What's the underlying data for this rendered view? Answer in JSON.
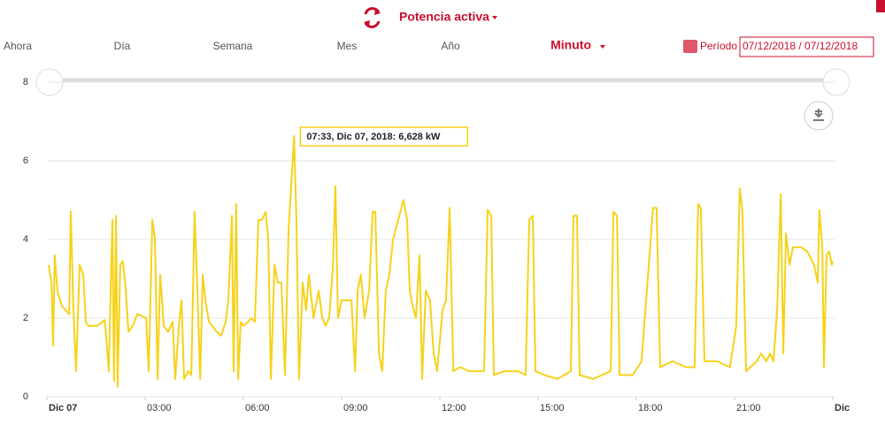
{
  "toolbar": {
    "title": "Potencia activa",
    "tabs": [
      "Ahora",
      "Día",
      "Semana",
      "Mes",
      "Año"
    ],
    "resolution": "Minuto",
    "period_label": "Período",
    "period_value": "07/12/2018 / 07/12/2018"
  },
  "chart_data": {
    "type": "line",
    "x": [
      0.05,
      0.14,
      0.19,
      0.24,
      0.32,
      0.46,
      0.68,
      0.73,
      0.81,
      0.89,
      1.0,
      1.11,
      1.19,
      1.27,
      1.54,
      1.76,
      1.81,
      1.89,
      2.0,
      2.05,
      2.11,
      2.16,
      2.24,
      2.32,
      2.41,
      2.49,
      2.62,
      2.76,
      3.03,
      3.11,
      3.22,
      3.3,
      3.38,
      3.46,
      3.57,
      3.7,
      3.84,
      3.92,
      4.03,
      4.11,
      4.19,
      4.32,
      4.41,
      4.51,
      4.59,
      4.68,
      4.76,
      4.84,
      4.95,
      5.05,
      5.19,
      5.32,
      5.46,
      5.54,
      5.65,
      5.7,
      5.78,
      5.84,
      5.92,
      6.0,
      6.14,
      6.24,
      6.35,
      6.46,
      6.57,
      6.68,
      6.76,
      6.84,
      6.95,
      7.05,
      7.16,
      7.27,
      7.38,
      7.55,
      7.62,
      7.7,
      7.81,
      7.92,
      8.0,
      8.14,
      8.3,
      8.41,
      8.51,
      8.62,
      8.73,
      8.81,
      8.89,
      9.0,
      9.16,
      9.3,
      9.41,
      9.49,
      9.59,
      9.7,
      9.84,
      9.95,
      10.03,
      10.14,
      10.24,
      10.35,
      10.46,
      10.57,
      10.73,
      10.89,
      11.0,
      11.08,
      11.16,
      11.27,
      11.38,
      11.46,
      11.57,
      11.7,
      11.81,
      11.92,
      12.08,
      12.19,
      12.3,
      12.41,
      12.62,
      12.89,
      13.16,
      13.35,
      13.46,
      13.57,
      13.65,
      13.97,
      14.38,
      14.62,
      14.73,
      14.84,
      14.92,
      15.19,
      15.59,
      16.0,
      16.08,
      16.19,
      16.27,
      16.68,
      17.22,
      17.3,
      17.41,
      17.49,
      17.89,
      18.16,
      18.51,
      18.62,
      18.73,
      19.11,
      19.51,
      19.78,
      19.89,
      19.97,
      20.08,
      20.46,
      20.86,
      21.05,
      21.16,
      21.24,
      21.35,
      21.68,
      21.81,
      21.97,
      22.08,
      22.19,
      22.3,
      22.41,
      22.49,
      22.57,
      22.68,
      22.78,
      23.03,
      23.22,
      23.43,
      23.54,
      23.59,
      23.68,
      23.73,
      23.81,
      23.89,
      23.97,
      24.0
    ],
    "series": [
      {
        "name": "Potencia activa",
        "color": "#f7d21a",
        "values": [
          3.35,
          2.9,
          1.3,
          3.6,
          2.7,
          2.3,
          2.1,
          4.7,
          2.2,
          0.65,
          3.35,
          3.1,
          1.9,
          1.8,
          1.8,
          1.95,
          1.55,
          0.65,
          4.5,
          0.4,
          4.6,
          0.25,
          3.35,
          3.45,
          2.7,
          1.65,
          1.8,
          2.1,
          2.0,
          0.65,
          4.5,
          4.0,
          0.45,
          3.1,
          1.8,
          1.65,
          1.9,
          0.45,
          1.8,
          2.45,
          0.45,
          0.65,
          0.55,
          4.7,
          2.9,
          0.45,
          3.1,
          2.45,
          1.9,
          1.8,
          1.65,
          1.55,
          1.9,
          2.45,
          4.6,
          0.65,
          4.9,
          0.45,
          1.9,
          1.8,
          1.9,
          2.0,
          1.9,
          4.5,
          4.5,
          4.7,
          4.0,
          0.45,
          3.35,
          2.9,
          2.9,
          0.55,
          4.25,
          6.628,
          4.5,
          0.45,
          2.9,
          2.2,
          3.1,
          2.0,
          2.7,
          2.0,
          1.8,
          2.0,
          3.25,
          5.35,
          2.0,
          2.45,
          2.45,
          2.45,
          0.65,
          2.7,
          3.1,
          2.0,
          2.7,
          4.7,
          4.7,
          1.1,
          0.65,
          2.7,
          3.1,
          4.0,
          4.5,
          5.0,
          4.5,
          2.7,
          2.35,
          2.0,
          3.6,
          0.45,
          2.7,
          2.45,
          1.1,
          0.65,
          2.2,
          2.45,
          4.8,
          0.65,
          0.75,
          0.65,
          0.65,
          0.65,
          4.75,
          4.6,
          0.55,
          0.65,
          0.65,
          0.55,
          4.5,
          4.6,
          0.65,
          0.55,
          0.45,
          0.65,
          4.6,
          4.6,
          0.55,
          0.45,
          0.65,
          4.7,
          4.6,
          0.55,
          0.55,
          0.9,
          4.8,
          4.8,
          0.75,
          0.9,
          0.75,
          0.75,
          4.9,
          4.8,
          0.9,
          0.9,
          0.75,
          1.8,
          5.3,
          4.7,
          0.65,
          0.9,
          1.1,
          0.9,
          1.1,
          0.9,
          2.2,
          5.15,
          1.1,
          4.15,
          3.35,
          3.8,
          3.8,
          3.7,
          3.35,
          2.9,
          4.75,
          3.8,
          0.75,
          3.6,
          3.7,
          3.35,
          3.45
        ]
      }
    ],
    "xlim": [
      0,
      24
    ],
    "xticks": [
      {
        "value": 0,
        "label": "Dic 07"
      },
      {
        "value": 3,
        "label": "03:00"
      },
      {
        "value": 6,
        "label": "06:00"
      },
      {
        "value": 9,
        "label": "09:00"
      },
      {
        "value": 12,
        "label": "12:00"
      },
      {
        "value": 15,
        "label": "15:00"
      },
      {
        "value": 18,
        "label": "18:00"
      },
      {
        "value": 21,
        "label": "21:00"
      },
      {
        "value": 24,
        "label": "Dic"
      }
    ],
    "ylim": [
      0,
      8
    ],
    "yticks": [
      0,
      2,
      4,
      6,
      8
    ],
    "grid": true,
    "annotation": {
      "text": "07:33, Dic 07, 2018: 6,628 kW",
      "x": 7.55,
      "y": 6.628
    }
  }
}
